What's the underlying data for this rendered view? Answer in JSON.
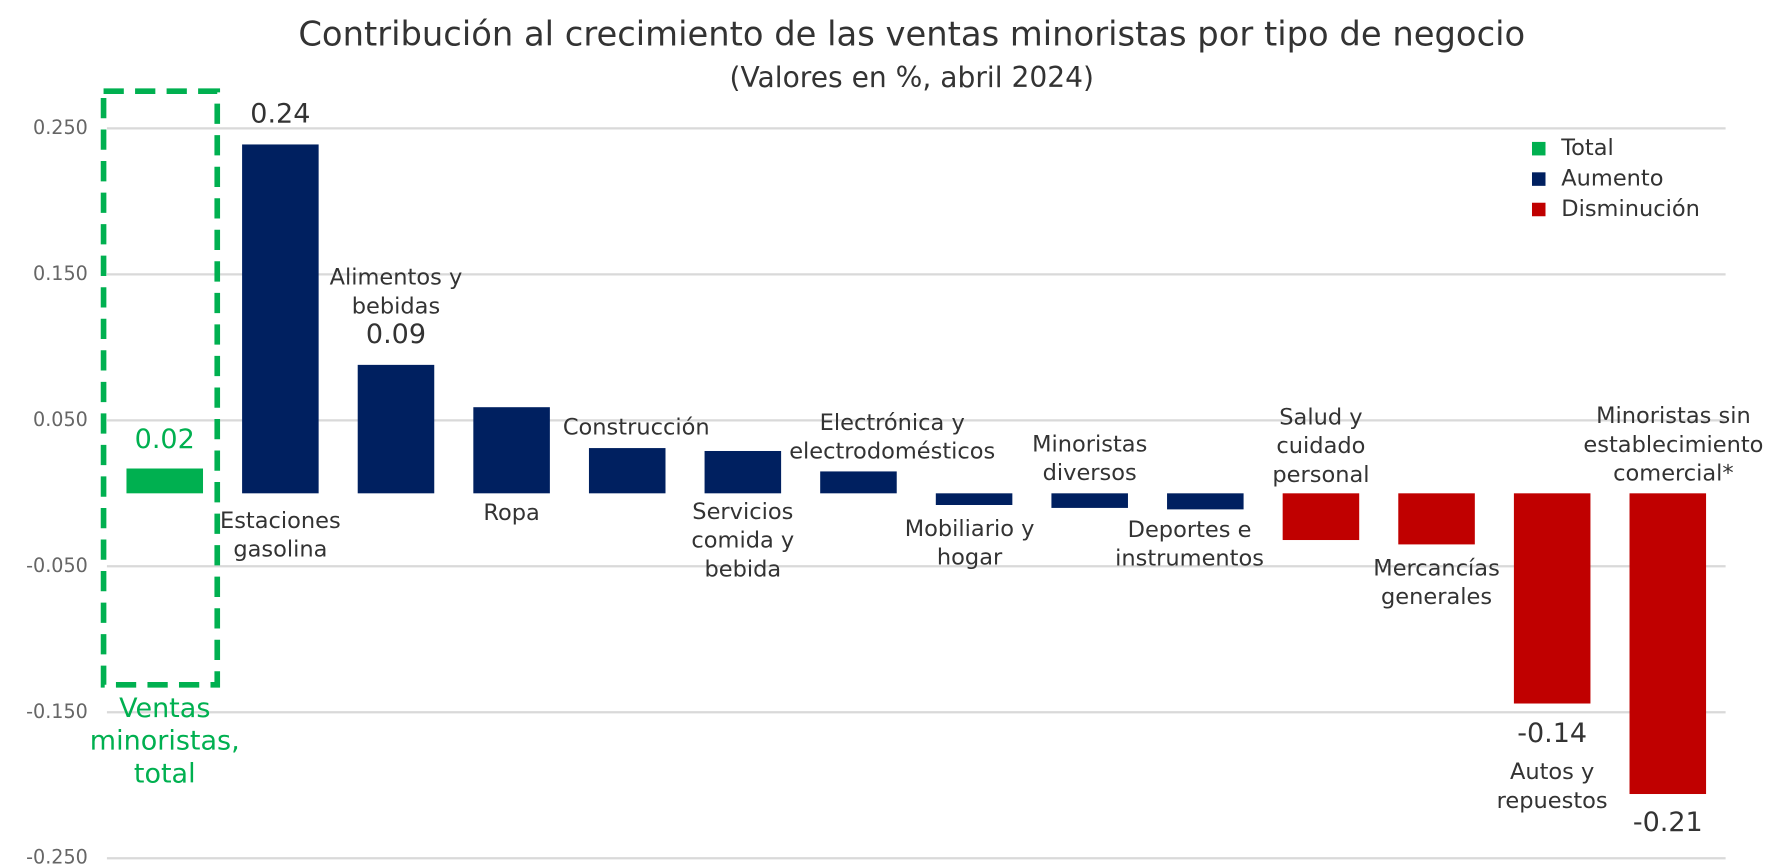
{
  "chart_data": {
    "type": "bar",
    "title": "Contribución al crecimiento de las ventas minoristas por tipo de negocio",
    "subtitle": "(Valores en %, abril 2024)",
    "categories": [
      [
        "Ventas",
        "minoristas,",
        "total"
      ],
      [
        "Estaciones",
        "gasolina"
      ],
      [
        "Alimentos y",
        "bebidas"
      ],
      [
        "Ropa"
      ],
      [
        "Construcción"
      ],
      [
        "Servicios",
        "comida y",
        "bebida"
      ],
      [
        "Electrónica y",
        "electrodomésticos"
      ],
      [
        "Mobiliario y",
        "hogar"
      ],
      [
        "Minoristas",
        "diversos"
      ],
      [
        "Deportes e",
        "instrumentos"
      ],
      [
        "Salud y",
        "cuidado",
        "personal"
      ],
      [
        "Mercancías",
        "generales"
      ],
      [
        "Autos y",
        "repuestos"
      ],
      [
        "Minoristas sin",
        "establecimiento",
        "comercial*"
      ]
    ],
    "values": [
      0.017,
      0.239,
      0.088,
      0.059,
      0.031,
      0.029,
      0.015,
      -0.008,
      -0.01,
      -0.011,
      -0.032,
      -0.035,
      -0.144,
      -0.206
    ],
    "value_labels": [
      "0.02",
      "0.24",
      "0.09",
      null,
      null,
      null,
      null,
      null,
      null,
      null,
      null,
      null,
      "-0.14",
      "-0.21"
    ],
    "colors": [
      "#00b050",
      "#002060",
      "#002060",
      "#002060",
      "#002060",
      "#002060",
      "#002060",
      "#002060",
      "#002060",
      "#002060",
      "#c00000",
      "#c00000",
      "#c00000",
      "#c00000"
    ],
    "legend": [
      {
        "name": "Total",
        "color": "#00b050"
      },
      {
        "name": "Aumento",
        "color": "#002060"
      },
      {
        "name": "Disminución",
        "color": "#c00000"
      }
    ],
    "ylim": [
      -0.25,
      0.25
    ],
    "yticks": [
      {
        "value": 0.25,
        "label": "0.250"
      },
      {
        "value": 0.15,
        "label": "0.150"
      },
      {
        "value": 0.05,
        "label": "0.050"
      },
      {
        "value": -0.05,
        "label": "-0.050"
      },
      {
        "value": -0.15,
        "label": "-0.150"
      },
      {
        "value": -0.25,
        "label": "-0.250"
      }
    ],
    "grid": true
  }
}
